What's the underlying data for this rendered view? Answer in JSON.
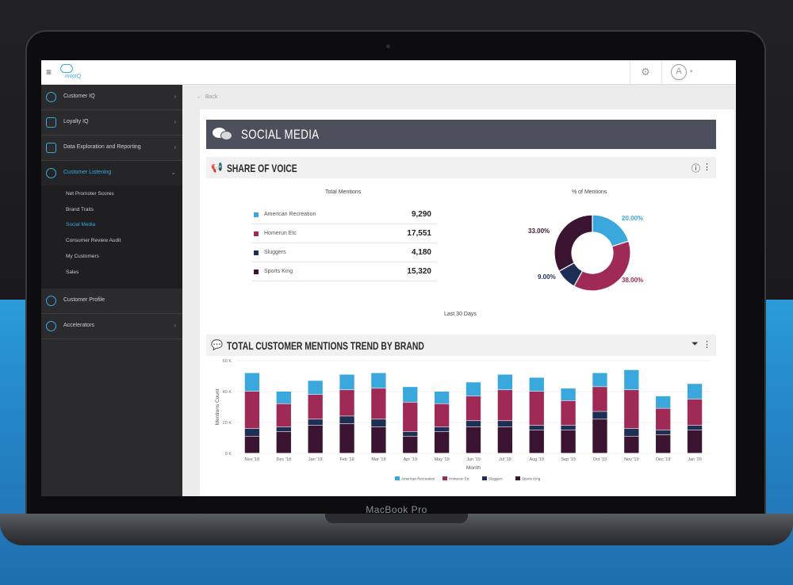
{
  "device": {
    "brand_label": "MacBook Pro"
  },
  "app": {
    "logo_text": "invoIQ",
    "topbar": {
      "hamburger": "≡",
      "gear": "⚙",
      "avatar": "A"
    }
  },
  "sidebar": {
    "items": [
      {
        "label": "Customer IQ"
      },
      {
        "label": "Loyalty IQ"
      },
      {
        "label": "Data Exploration and Reporting"
      },
      {
        "label": "Customer Listening"
      },
      {
        "label": "Customer Profile"
      },
      {
        "label": "Accelerators"
      }
    ],
    "submenu": [
      {
        "label": "Net Promoter Scores"
      },
      {
        "label": "Brand Traits"
      },
      {
        "label": "Social Media"
      },
      {
        "label": "Consumer Review Audit"
      },
      {
        "label": "My Customers"
      },
      {
        "label": "Sales"
      }
    ]
  },
  "content": {
    "back_label": "Back",
    "page_title": "SOCIAL MEDIA",
    "share_of_voice": {
      "title": "SHARE OF VOICE",
      "total_mentions_title": "Total Mentions",
      "pct_mentions_title": "% of Mentions",
      "period": "Last 30 Days",
      "rows": [
        {
          "name": "American Recreation",
          "value": "9,290",
          "color": "#3aa8dc"
        },
        {
          "name": "Homerun Etc",
          "value": "17,551",
          "color": "#9e2a55"
        },
        {
          "name": "Sluggers",
          "value": "4,180",
          "color": "#1e2f55"
        },
        {
          "name": "Sports King",
          "value": "15,320",
          "color": "#3a1430"
        }
      ],
      "donut_labels": [
        {
          "text": "20.00%",
          "color": "#3aa8dc"
        },
        {
          "text": "38.00%",
          "color": "#9e2a55"
        },
        {
          "text": "9.00%",
          "color": "#1e2f55"
        },
        {
          "text": "33.00%",
          "color": "#3a1430"
        }
      ]
    },
    "trend": {
      "title": "TOTAL CUSTOMER MENTIONS TREND BY BRAND"
    }
  },
  "colors": {
    "accent": "#39a9e0",
    "header_bar": "#4c4f5c",
    "american_recreation": "#3aa8dc",
    "homerun_etc": "#9e2a55",
    "sluggers": "#1e2f55",
    "sports_king": "#3a1430"
  },
  "chart_data": {
    "type": "bar",
    "stacked": true,
    "title": "",
    "xlabel": "Month",
    "ylabel": "Mentions Count",
    "ylim": [
      0,
      60000
    ],
    "yticks": [
      "0 K",
      "20 K",
      "40 K",
      "60 K"
    ],
    "categories": [
      "Nov '18",
      "Dec '18",
      "Jan '19",
      "Feb '19",
      "Mar '19",
      "Apr '19",
      "May '19",
      "Jun '19",
      "Jul '19",
      "Aug '19",
      "Sep '19",
      "Oct '19",
      "Nov '19",
      "Dec '19",
      "Jan '20"
    ],
    "series": [
      {
        "name": "Sports King",
        "color": "#3a1430",
        "values": [
          11000,
          14000,
          18000,
          19000,
          17000,
          11000,
          14000,
          17000,
          17000,
          15000,
          15000,
          22000,
          11000,
          12000,
          15000
        ]
      },
      {
        "name": "Sluggers",
        "color": "#1e2f55",
        "values": [
          5000,
          3000,
          4000,
          5000,
          5000,
          3000,
          3000,
          4000,
          4000,
          3000,
          3000,
          5000,
          5000,
          3000,
          3000
        ]
      },
      {
        "name": "Homerun Etc",
        "color": "#9e2a55",
        "values": [
          24000,
          15000,
          16000,
          17000,
          20000,
          19000,
          15000,
          16000,
          20000,
          22000,
          16000,
          16000,
          25000,
          14000,
          17000
        ]
      },
      {
        "name": "American Recreation",
        "color": "#3aa8dc",
        "values": [
          12000,
          8000,
          9000,
          10000,
          10000,
          10000,
          8000,
          9000,
          10000,
          9000,
          8000,
          9000,
          13000,
          8000,
          10000
        ]
      }
    ],
    "legend": [
      "American Recreation",
      "Homerun Etc",
      "Sluggers",
      "Sports King"
    ],
    "legend_position": "bottom"
  }
}
